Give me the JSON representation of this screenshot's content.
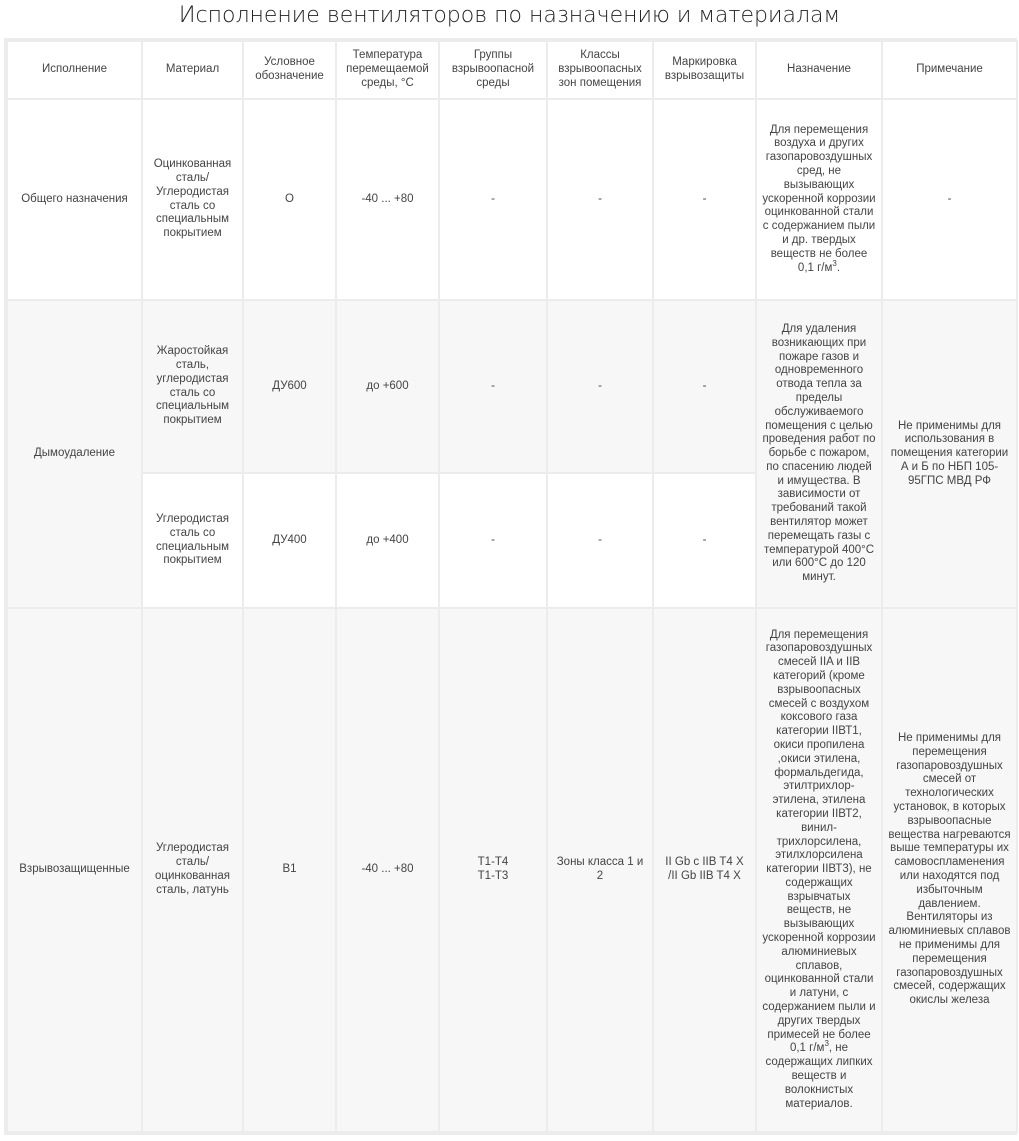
{
  "title": "Исполнение вентиляторов по назначению и материалам",
  "headers": [
    "Исполнение",
    "Материал",
    "Условное обозначение",
    "Температура перемещаемой среды, °С",
    "Группы взрывоопасной среды",
    "Классы взрывоопасных зон помещения",
    "Маркировка взрывозащиты",
    "Назначение",
    "Примечание"
  ],
  "rows": {
    "general": {
      "execution": "Общего назначения",
      "material": "Оцинкованная сталь/ Углеродистая сталь со специальным покрытием",
      "designation": "О",
      "temperature": "-40 ... +80",
      "groups": "-",
      "zones": "-",
      "marking": "-",
      "purpose": "Для перемещения воздуха и других газопаровоздушных сред, не вызывающих ускоренной коррозии оцинкованной стали с содержанием пыли и др. твердых веществ не более 0,1 г/м",
      "purpose_sup": "3",
      "purpose_end": ".",
      "note": "-"
    },
    "smoke": {
      "execution": "Дымоудаление",
      "sub": [
        {
          "material": "Жаростойкая сталь, углеродистая сталь  со специальным покрытием",
          "designation": "ДУ600",
          "temperature": "до +600",
          "groups": "-",
          "zones": "-",
          "marking": "-"
        },
        {
          "material": "Углеродистая сталь со специальным покрытием",
          "designation": "ДУ400",
          "temperature": "до +400",
          "groups": "-",
          "zones": "-",
          "marking": "-"
        }
      ],
      "purpose": "Для удаления возникающих при пожаре газов и одновременного отвода тепла за пределы обслуживаемого помещения с целью проведения работ по борьбе с пожаром, по спасению людей и имущества. В зависимости от требований такой вентилятор может перемещать газы с температурой 400°С или 600°С до 120 минут.",
      "note": "Не применимы для использования в помещения категории А и Б по НБП 105-95ГПС МВД РФ"
    },
    "explosion": {
      "execution": "Взрывозащищенные",
      "material": "Углеродистая сталь/ оцинкованная сталь, латунь",
      "designation": "В1",
      "temperature": "-40 ... +80",
      "groups": [
        "Т1-Т4",
        "Т1-Т3"
      ],
      "zones": "Зоны класса 1 и 2",
      "marking": "II Gb c IIB T4 X /II Gb  IIB T4 X",
      "purpose": "Для перемещения газопаровоздушных смесей IIA и IIB категорий (кроме взрывоопасных смесей с воздухом коксового газа категории  IIВТ1, окиси пропилена ,окиси этилена, формальдегида, этилтрихлор-этилена, этилена категории IIВТ2, винил-трихлорсилена, этилхлорсилена категории IIВТ3), не содержащих взрывчатых веществ, не вызывающих ускоренной коррозии алюминиевых сплавов, оцинкованной стали и латуни, с содержанием пыли и других твердых примесей не более 0,1 г/м",
      "purpose_sup": "3",
      "purpose_end": ", не содержащих липких веществ и волокнистых материалов.",
      "note": "Не применимы для перемещения газопаровоздушных смесей от технологических установок, в которых взрывоопасные вещества нагреваются выше температуры их самовоспламенения или находятся под избыточным давлением. Вентиляторы из алюминиевых сплавов не применимы для перемещения газопаровоздушных смесей, содержащих окислы железа"
    }
  },
  "colors": {
    "border": "#ececec",
    "alt_row": "#f7f7f7",
    "text": "#444444"
  }
}
